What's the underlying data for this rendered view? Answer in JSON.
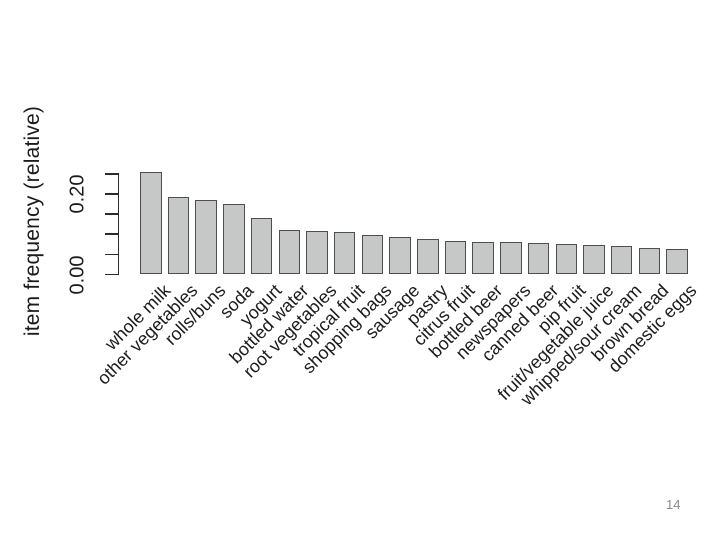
{
  "page": {
    "number": "14",
    "background_color": "#ffffff"
  },
  "chart_data": {
    "type": "bar",
    "title": "",
    "xlabel": "",
    "ylabel": "item frequency (relative)",
    "categories": [
      "whole milk",
      "other vegetables",
      "rolls/buns",
      "soda",
      "yogurt",
      "bottled water",
      "root vegetables",
      "tropical fruit",
      "shopping bags",
      "sausage",
      "pastry",
      "citrus fruit",
      "bottled beer",
      "newspapers",
      "canned beer",
      "pip fruit",
      "fruit/vegetable juice",
      "whipped/sour cream",
      "brown bread",
      "domestic eggs"
    ],
    "values": [
      0.2555,
      0.1935,
      0.1839,
      0.1744,
      0.1395,
      0.1105,
      0.109,
      0.1049,
      0.0985,
      0.094,
      0.089,
      0.0828,
      0.0805,
      0.0798,
      0.0777,
      0.0757,
      0.0723,
      0.0717,
      0.0649,
      0.0634
    ],
    "ylim": [
      0,
      0.25
    ],
    "yticks": [
      0,
      0.05,
      0.1,
      0.15,
      0.2,
      0.25
    ],
    "ytick_labels": [
      {
        "value": 0.0,
        "label": "0.00"
      },
      {
        "value": 0.2,
        "label": "0.20"
      }
    ],
    "grid": false,
    "legend": null,
    "x_label_rotation_deg": 45,
    "bar_fill_color": "#c5c8c6",
    "bar_border_color": "#4d4f4e",
    "axis_color": "#2b2b2b",
    "text_color": "#1b1b1b"
  }
}
